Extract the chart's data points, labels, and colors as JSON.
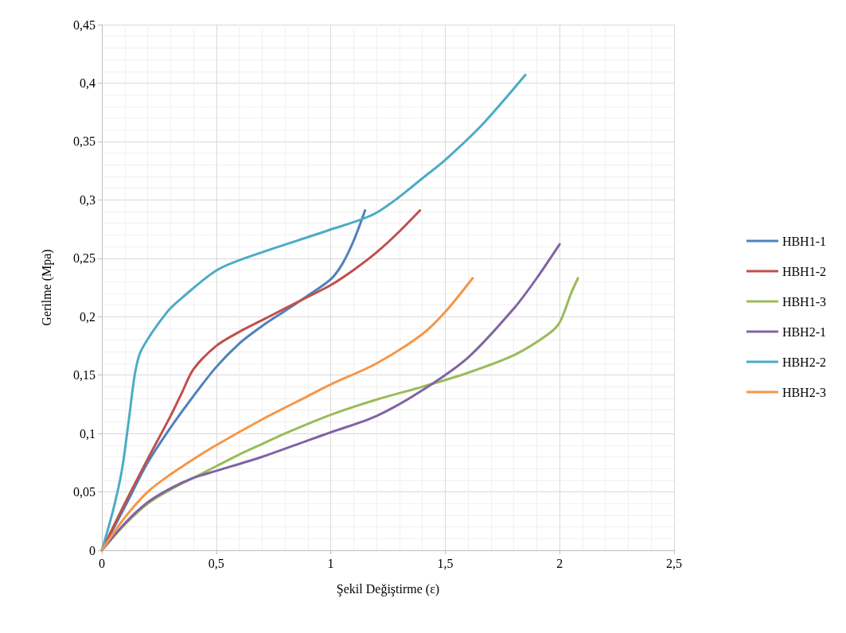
{
  "chart_data": {
    "type": "line",
    "xlabel": "Şekil Değiştirme (ε)",
    "ylabel": "Gerilme (Mpa)",
    "xlim": [
      0,
      2.5
    ],
    "xticks": [
      0,
      {
        "value": 0.5,
        "label": "0,5"
      },
      1,
      {
        "value": 1.5,
        "label": "1,5"
      },
      2,
      {
        "value": 2.5,
        "label": "2,5"
      }
    ],
    "ylim": [
      0,
      0.45
    ],
    "yticks": [
      0,
      {
        "value": 0.05,
        "label": "0,05"
      },
      {
        "value": 0.1,
        "label": "0,1"
      },
      {
        "value": 0.15,
        "label": "0,15"
      },
      {
        "value": 0.2,
        "label": "0,2"
      },
      {
        "value": 0.25,
        "label": "0,25"
      },
      {
        "value": 0.3,
        "label": "0,3"
      },
      {
        "value": 0.35,
        "label": "0,35"
      },
      {
        "value": 0.4,
        "label": "0,4"
      },
      {
        "value": 0.45,
        "label": "0,45"
      }
    ],
    "grid": true,
    "legend": "right",
    "marker": "none",
    "line_style": "solid",
    "series": [
      {
        "name": "HBH1-1",
        "color": "#4f81bd",
        "x": [
          0,
          0.1,
          0.2,
          0.3,
          0.4,
          0.5,
          0.6,
          0.7,
          0.8,
          0.9,
          1.0,
          1.05,
          1.1,
          1.15
        ],
        "values": [
          0,
          0.037,
          0.075,
          0.105,
          0.132,
          0.157,
          0.177,
          0.192,
          0.205,
          0.218,
          0.232,
          0.245,
          0.265,
          0.291
        ]
      },
      {
        "name": "HBH1-2",
        "color": "#c0504d",
        "x": [
          0,
          0.1,
          0.2,
          0.3,
          0.35,
          0.4,
          0.5,
          0.6,
          0.7,
          0.8,
          0.9,
          1.0,
          1.1,
          1.2,
          1.3,
          1.39
        ],
        "values": [
          0,
          0.04,
          0.078,
          0.115,
          0.135,
          0.155,
          0.175,
          0.187,
          0.197,
          0.207,
          0.217,
          0.227,
          0.24,
          0.255,
          0.273,
          0.291
        ]
      },
      {
        "name": "HBH1-3",
        "color": "#9bbb59",
        "x": [
          0,
          0.1,
          0.2,
          0.3,
          0.4,
          0.5,
          0.6,
          0.7,
          0.8,
          1.0,
          1.2,
          1.4,
          1.6,
          1.8,
          1.95,
          2.0,
          2.05,
          2.08
        ],
        "values": [
          0,
          0.022,
          0.04,
          0.052,
          0.062,
          0.072,
          0.082,
          0.091,
          0.1,
          0.116,
          0.129,
          0.14,
          0.152,
          0.167,
          0.185,
          0.195,
          0.22,
          0.233
        ]
      },
      {
        "name": "HBH2-1",
        "color": "#8064a2",
        "x": [
          0,
          0.1,
          0.2,
          0.3,
          0.4,
          0.5,
          0.7,
          0.9,
          1.0,
          1.2,
          1.4,
          1.6,
          1.8,
          1.9,
          2.0
        ],
        "values": [
          0,
          0.023,
          0.041,
          0.053,
          0.062,
          0.068,
          0.08,
          0.094,
          0.101,
          0.115,
          0.137,
          0.165,
          0.207,
          0.233,
          0.262
        ]
      },
      {
        "name": "HBH2-2",
        "color": "#4bacc6",
        "x": [
          0,
          0.05,
          0.087,
          0.118,
          0.146,
          0.174,
          0.285,
          0.355,
          0.504,
          0.668,
          0.99,
          1.2,
          1.43,
          1.505,
          1.655,
          1.85
        ],
        "values": [
          0,
          0.035,
          0.068,
          0.112,
          0.153,
          0.172,
          0.204,
          0.217,
          0.24,
          0.253,
          0.274,
          0.289,
          0.323,
          0.335,
          0.363,
          0.407
        ]
      },
      {
        "name": "HBH2-3",
        "color": "#f79646",
        "x": [
          0,
          0.1,
          0.2,
          0.3,
          0.4,
          0.5,
          0.7,
          0.9,
          1.0,
          1.2,
          1.4,
          1.5,
          1.62
        ],
        "values": [
          0,
          0.028,
          0.05,
          0.065,
          0.078,
          0.09,
          0.112,
          0.132,
          0.142,
          0.16,
          0.185,
          0.204,
          0.233
        ]
      }
    ]
  }
}
